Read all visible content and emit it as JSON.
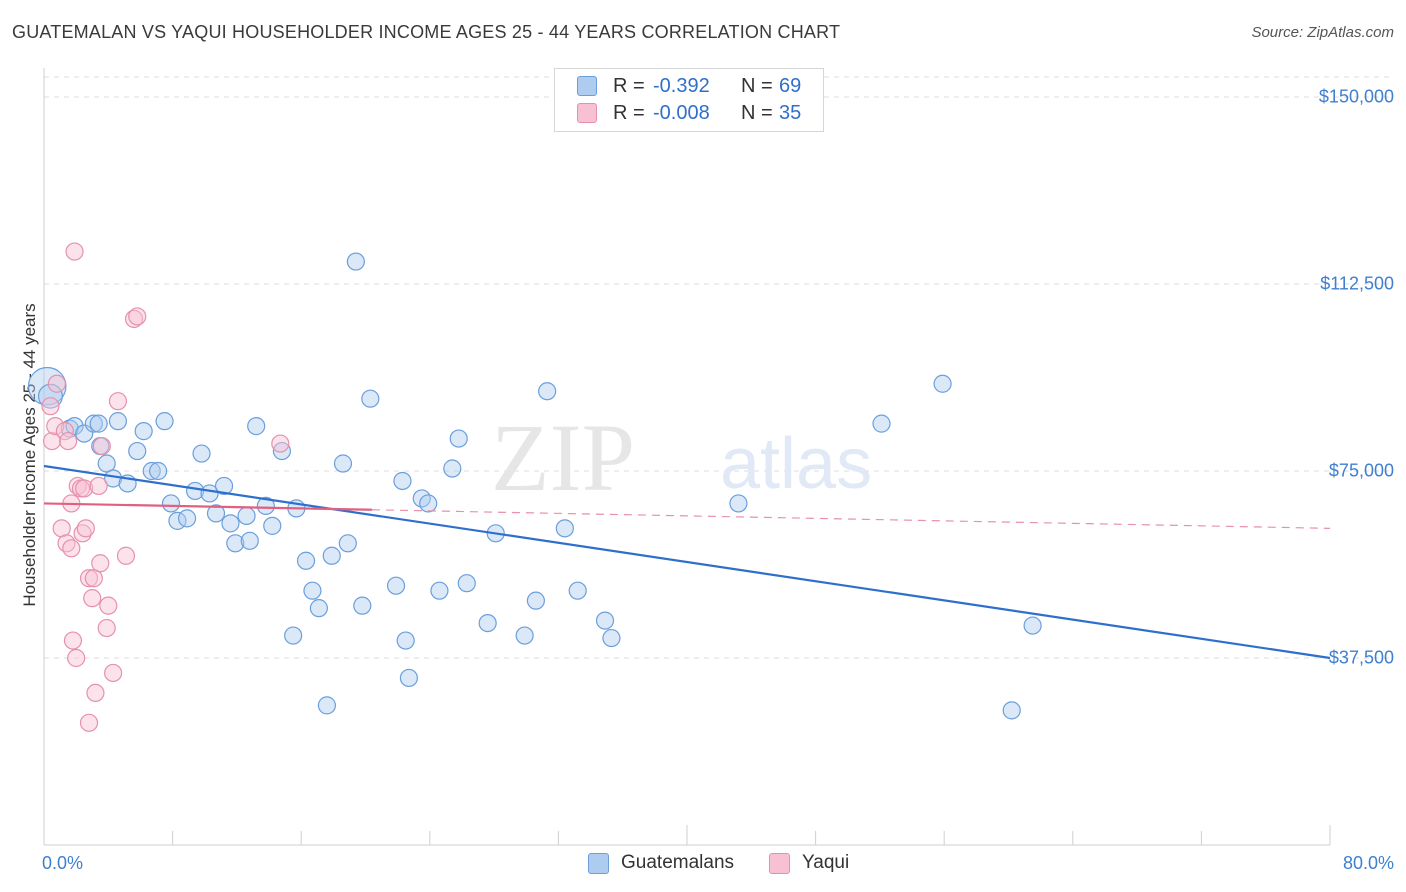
{
  "title": "GUATEMALAN VS YAQUI HOUSEHOLDER INCOME AGES 25 - 44 YEARS CORRELATION CHART",
  "source": "Source: ZipAtlas.com",
  "watermark": {
    "zip": "ZIP",
    "atlas": "atlas"
  },
  "legend": {
    "rows": [
      {
        "r_label": "R =",
        "r_value": "-0.392",
        "n_label": "N =",
        "n_value": "69",
        "color": "#aecbf0",
        "border": "#6b9fdc"
      },
      {
        "r_label": "R =",
        "r_value": "-0.008",
        "n_label": "N =",
        "n_value": "35",
        "color": "#f8c1d3",
        "border": "#e691ac"
      }
    ],
    "bottom": [
      {
        "label": "Guatemalans"
      },
      {
        "label": "Yaqui"
      }
    ]
  },
  "chart_data": {
    "type": "scatter",
    "title": "GUATEMALAN VS YAQUI HOUSEHOLDER INCOME AGES 25 - 44 YEARS CORRELATION CHART",
    "xlabel": "",
    "ylabel": "Householder Income Ages 25 - 44 years",
    "xlim": [
      0,
      80
    ],
    "ylim": [
      0,
      156000
    ],
    "x_tick_labels": {
      "min": "0.0%",
      "max": "80.0%"
    },
    "y_ticks": [
      {
        "value": 37500,
        "label": "$37,500"
      },
      {
        "value": 75000,
        "label": "$75,000"
      },
      {
        "value": 112500,
        "label": "$112,500"
      },
      {
        "value": 150000,
        "label": "$150,000"
      }
    ],
    "grid": true,
    "series": [
      {
        "name": "Guatemalans",
        "color": "#6b9fdc",
        "fill": "#aecbf0",
        "trend": {
          "x0": 0,
          "y0": 76000,
          "x1": 80,
          "y1": 37500,
          "dashed_from": null
        },
        "points": [
          [
            0.2,
            92000,
            2.2
          ],
          [
            0.4,
            90000,
            1.4
          ],
          [
            1.6,
            83500,
            1
          ],
          [
            1.9,
            84000,
            1
          ],
          [
            2.5,
            82500,
            1
          ],
          [
            3.1,
            84500,
            1
          ],
          [
            3.4,
            84500,
            1
          ],
          [
            3.5,
            80000,
            1
          ],
          [
            3.9,
            76500,
            1
          ],
          [
            4.3,
            73500,
            1
          ],
          [
            4.6,
            85000,
            1
          ],
          [
            5.2,
            72500,
            1
          ],
          [
            5.8,
            79000,
            1
          ],
          [
            6.2,
            83000,
            1
          ],
          [
            6.7,
            75000,
            1
          ],
          [
            7.1,
            75000,
            1
          ],
          [
            7.5,
            85000,
            1
          ],
          [
            7.9,
            68500,
            1
          ],
          [
            8.3,
            65000,
            1
          ],
          [
            8.9,
            65500,
            1
          ],
          [
            9.4,
            71000,
            1
          ],
          [
            9.8,
            78500,
            1
          ],
          [
            10.3,
            70500,
            1
          ],
          [
            10.7,
            66500,
            1
          ],
          [
            11.2,
            72000,
            1
          ],
          [
            11.6,
            64500,
            1
          ],
          [
            11.9,
            60500,
            1
          ],
          [
            12.6,
            66000,
            1
          ],
          [
            12.8,
            61000,
            1
          ],
          [
            13.2,
            84000,
            1
          ],
          [
            13.8,
            68000,
            1
          ],
          [
            14.2,
            64000,
            1
          ],
          [
            14.8,
            79000,
            1
          ],
          [
            15.5,
            42000,
            1
          ],
          [
            15.7,
            67500,
            1
          ],
          [
            16.3,
            57000,
            1
          ],
          [
            16.7,
            51000,
            1
          ],
          [
            17.1,
            47500,
            1
          ],
          [
            17.6,
            28000,
            1
          ],
          [
            17.9,
            58000,
            1
          ],
          [
            18.6,
            76500,
            1
          ],
          [
            18.9,
            60500,
            1
          ],
          [
            19.4,
            117000,
            1
          ],
          [
            19.8,
            48000,
            1
          ],
          [
            20.3,
            89500,
            1
          ],
          [
            21.9,
            52000,
            1
          ],
          [
            22.3,
            73000,
            1
          ],
          [
            22.5,
            41000,
            1
          ],
          [
            22.7,
            33500,
            1
          ],
          [
            23.5,
            69500,
            1
          ],
          [
            23.9,
            68500,
            1
          ],
          [
            24.6,
            51000,
            1
          ],
          [
            25.4,
            75500,
            1
          ],
          [
            25.8,
            81500,
            1
          ],
          [
            26.3,
            52500,
            1
          ],
          [
            27.6,
            44500,
            1
          ],
          [
            28.1,
            62500,
            1
          ],
          [
            29.9,
            42000,
            1
          ],
          [
            30.6,
            49000,
            1
          ],
          [
            31.3,
            91000,
            1
          ],
          [
            32.4,
            63500,
            1
          ],
          [
            33.2,
            51000,
            1
          ],
          [
            34.9,
            45000,
            1
          ],
          [
            35.3,
            41500,
            1
          ],
          [
            43.2,
            68500,
            1
          ],
          [
            52.1,
            84500,
            1
          ],
          [
            55.9,
            92500,
            1
          ],
          [
            60.2,
            27000,
            1
          ],
          [
            61.5,
            44000,
            1
          ]
        ]
      },
      {
        "name": "Yaqui",
        "color": "#e691ac",
        "fill": "#f8c1d3",
        "trend": {
          "x0": 0,
          "y0": 68500,
          "x1": 80,
          "y1": 63500,
          "dashed_from": 20.4
        },
        "points": [
          [
            0.4,
            88000,
            1
          ],
          [
            0.5,
            81000,
            1
          ],
          [
            0.7,
            84000,
            1
          ],
          [
            0.8,
            92500,
            1
          ],
          [
            1.1,
            63500,
            1
          ],
          [
            1.3,
            83000,
            1
          ],
          [
            1.4,
            60500,
            1
          ],
          [
            1.5,
            81000,
            1
          ],
          [
            1.7,
            59500,
            1
          ],
          [
            1.7,
            68500,
            1
          ],
          [
            1.8,
            41000,
            1
          ],
          [
            1.9,
            119000,
            1
          ],
          [
            2.0,
            37500,
            1
          ],
          [
            2.1,
            72000,
            1
          ],
          [
            2.3,
            71500,
            1
          ],
          [
            2.4,
            62500,
            1
          ],
          [
            2.5,
            71500,
            1
          ],
          [
            2.6,
            63500,
            1
          ],
          [
            2.8,
            53500,
            1
          ],
          [
            2.8,
            24500,
            1
          ],
          [
            3.0,
            49500,
            1
          ],
          [
            3.1,
            53500,
            1
          ],
          [
            3.2,
            30500,
            1
          ],
          [
            3.4,
            72000,
            1
          ],
          [
            3.5,
            56500,
            1
          ],
          [
            3.6,
            80000,
            1
          ],
          [
            3.9,
            43500,
            1
          ],
          [
            4.0,
            48000,
            1
          ],
          [
            4.3,
            34500,
            1
          ],
          [
            4.6,
            89000,
            1
          ],
          [
            5.1,
            58000,
            1
          ],
          [
            5.6,
            105500,
            1
          ],
          [
            5.8,
            106000,
            1
          ],
          [
            14.7,
            80500,
            1
          ],
          [
            6.0,
            104000,
            0
          ]
        ]
      }
    ]
  }
}
